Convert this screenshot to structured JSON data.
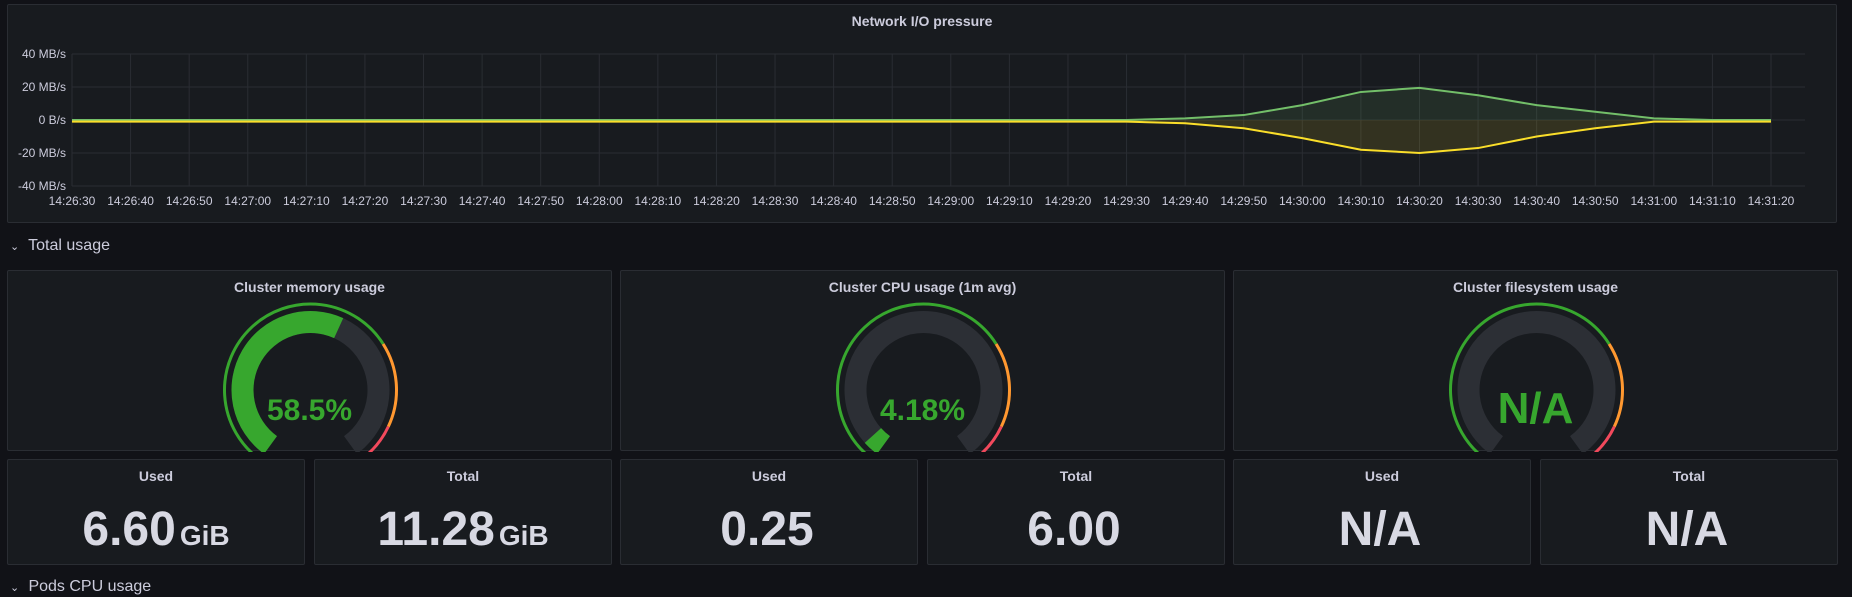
{
  "network_panel": {
    "title": "Network I/O pressure",
    "chart_data": {
      "type": "area",
      "x": [
        "14:26:30",
        "14:26:40",
        "14:26:50",
        "14:27:00",
        "14:27:10",
        "14:27:20",
        "14:27:30",
        "14:27:40",
        "14:27:50",
        "14:28:00",
        "14:28:10",
        "14:28:20",
        "14:28:30",
        "14:28:40",
        "14:28:50",
        "14:29:00",
        "14:29:10",
        "14:29:20",
        "14:29:30",
        "14:29:40",
        "14:29:50",
        "14:30:00",
        "14:30:10",
        "14:30:20",
        "14:30:30",
        "14:30:40",
        "14:30:50",
        "14:31:00",
        "14:31:10",
        "14:31:20"
      ],
      "y_ticks": [
        "40 MB/s",
        "20 MB/s",
        "0 B/s",
        "-20 MB/s",
        "-40 MB/s"
      ],
      "ylim": [
        -40,
        40
      ],
      "grid": true,
      "series": [
        {
          "color": "#73bf69",
          "values": [
            0,
            0,
            0,
            0,
            0,
            0,
            0,
            0,
            0,
            0,
            0,
            0,
            0,
            0,
            0,
            0,
            0,
            0,
            0,
            1,
            3,
            9,
            17,
            19.5,
            15,
            9,
            5,
            1,
            0,
            0
          ]
        },
        {
          "color": "#fade2a",
          "values": [
            -1,
            -1,
            -1,
            -1,
            -1,
            -1,
            -1,
            -1,
            -1,
            -1,
            -1,
            -1,
            -1,
            -1,
            -1,
            -1,
            -1,
            -1,
            -1,
            -2,
            -5,
            -11,
            -18,
            -20,
            -17,
            -10,
            -5,
            -1,
            -1,
            -1
          ]
        }
      ]
    }
  },
  "rows": {
    "total_usage": "Total usage",
    "pods_cpu": "Pods CPU usage"
  },
  "gauges": [
    {
      "title": "Cluster memory usage",
      "value": "58.5%",
      "fraction": 0.585
    },
    {
      "title": "Cluster CPU usage (1m avg)",
      "value": "4.18%",
      "fraction": 0.0418
    },
    {
      "title": "Cluster filesystem usage",
      "value": "N/A",
      "fraction": 0
    }
  ],
  "stats": [
    {
      "title": "Used",
      "value": "6.60",
      "unit": "GiB"
    },
    {
      "title": "Total",
      "value": "11.28",
      "unit": "GiB"
    },
    {
      "title": "Used",
      "value": "0.25",
      "unit": ""
    },
    {
      "title": "Total",
      "value": "6.00",
      "unit": ""
    },
    {
      "title": "Used",
      "value": "N/A",
      "unit": ""
    },
    {
      "title": "Total",
      "value": "N/A",
      "unit": ""
    }
  ],
  "colors": {
    "green": "#37a72e",
    "orange": "#ff9830",
    "red": "#f2495c",
    "track": "#2c2f35"
  }
}
